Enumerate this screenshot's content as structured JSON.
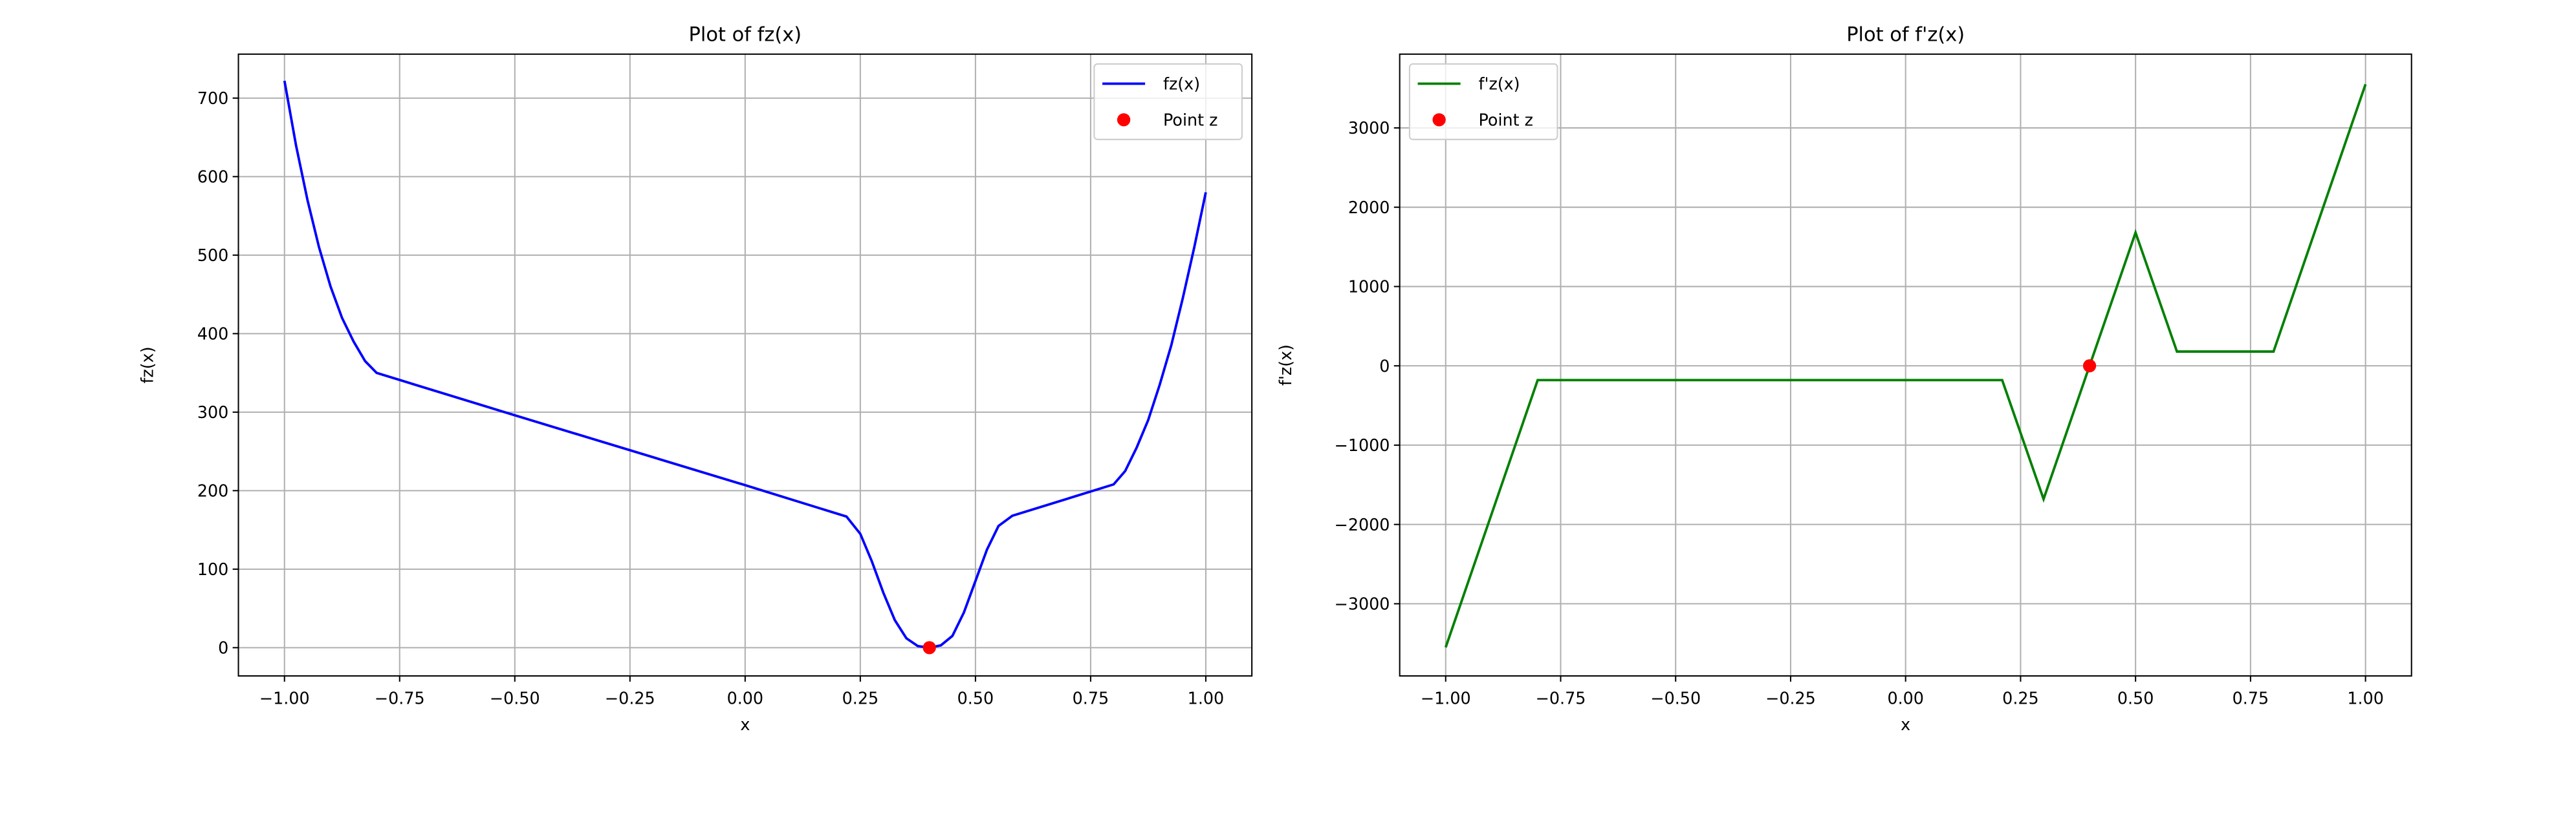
{
  "chart_data": [
    {
      "type": "line",
      "title": "Plot of fz(x)",
      "xlabel": "x",
      "ylabel": "fz(x)",
      "grid": true,
      "legend": "upper right",
      "xlim": [
        -1.1,
        1.1
      ],
      "ylim": [
        -36,
        756
      ],
      "xticks": [
        {
          "value": -1,
          "label": "−1.00"
        },
        {
          "value": -0.75,
          "label": "−0.75"
        },
        {
          "value": -0.5,
          "label": "−0.50"
        },
        {
          "value": -0.25,
          "label": "−0.25"
        },
        {
          "value": 0,
          "label": "0.00"
        },
        {
          "value": 0.25,
          "label": "0.25"
        },
        {
          "value": 0.5,
          "label": "0.50"
        },
        {
          "value": 0.75,
          "label": "0.75"
        },
        {
          "value": 1,
          "label": "1.00"
        }
      ],
      "yticks": [
        0,
        100,
        200,
        300,
        400,
        500,
        600,
        700
      ],
      "series": [
        {
          "name": "fz(x)",
          "color": "#0000ff",
          "x": [
            -1,
            -0.975,
            -0.95,
            -0.925,
            -0.9,
            -0.875,
            -0.85,
            -0.825,
            -0.8,
            -0.5,
            0,
            0.22,
            0.25,
            0.275,
            0.3,
            0.325,
            0.35,
            0.375,
            0.4,
            0.425,
            0.45,
            0.475,
            0.5,
            0.525,
            0.55,
            0.58,
            0.8,
            0.825,
            0.85,
            0.875,
            0.9,
            0.925,
            0.95,
            0.975,
            1.0
          ],
          "values": [
            722,
            640,
            570,
            510,
            460,
            420,
            390,
            365,
            350,
            296,
            207,
            167,
            145,
            110,
            70,
            35,
            12,
            2,
            0,
            3,
            15,
            45,
            85,
            125,
            155,
            168,
            208,
            225,
            255,
            290,
            335,
            385,
            445,
            510,
            580
          ]
        },
        {
          "name": "Point z",
          "color": "#ff0000",
          "marker": "point",
          "x": [
            0.4
          ],
          "values": [
            0
          ]
        }
      ]
    },
    {
      "type": "line",
      "title": "Plot of f'z(x)",
      "xlabel": "x",
      "ylabel": "f'z(x)",
      "grid": true,
      "legend": "upper left",
      "xlim": [
        -1.1,
        1.1
      ],
      "ylim": [
        -3910,
        3930
      ],
      "xticks": [
        {
          "value": -1,
          "label": "−1.00"
        },
        {
          "value": -0.75,
          "label": "−0.75"
        },
        {
          "value": -0.5,
          "label": "−0.50"
        },
        {
          "value": -0.25,
          "label": "−0.25"
        },
        {
          "value": 0,
          "label": "0.00"
        },
        {
          "value": 0.25,
          "label": "0.25"
        },
        {
          "value": 0.5,
          "label": "0.50"
        },
        {
          "value": 0.75,
          "label": "0.75"
        },
        {
          "value": 1,
          "label": "1.00"
        }
      ],
      "yticks": [
        {
          "value": -3000,
          "label": "−3000"
        },
        {
          "value": -2000,
          "label": "−2000"
        },
        {
          "value": -1000,
          "label": "−1000"
        },
        0,
        1000,
        2000,
        3000
      ],
      "series": [
        {
          "name": "f'z(x)",
          "color": "#008000",
          "x": [
            -1,
            -0.8,
            0.21,
            0.3,
            0.4,
            0.5,
            0.59,
            0.8,
            1.0
          ],
          "values": [
            -3550,
            -180,
            -180,
            -1680,
            0,
            1680,
            180,
            180,
            3550
          ]
        },
        {
          "name": "Point z",
          "color": "#ff0000",
          "marker": "point",
          "x": [
            0.4
          ],
          "values": [
            0
          ]
        }
      ]
    }
  ]
}
